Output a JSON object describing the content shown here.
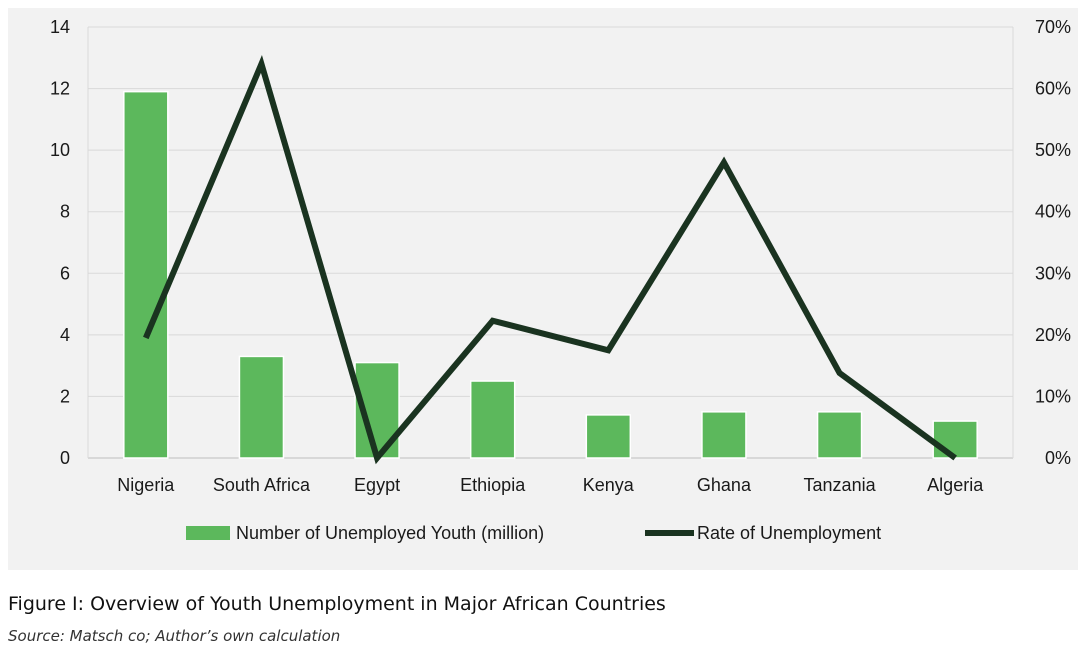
{
  "chart_data": {
    "type": "bar",
    "categories": [
      "Nigeria",
      "South Africa",
      "Egypt",
      "Ethiopia",
      "Kenya",
      "Ghana",
      "Tanzania",
      "Algeria"
    ],
    "series": [
      {
        "name": "Number of Unemployed Youth (million)",
        "type": "bar",
        "axis": "left",
        "color": "#5cb85c",
        "values": [
          11.9,
          3.3,
          3.1,
          2.5,
          1.4,
          1.5,
          1.5,
          1.2
        ]
      },
      {
        "name": "Rate of Unemployment",
        "type": "line",
        "axis": "right",
        "color": "#1a3320",
        "values": [
          19.5,
          64,
          0,
          22.3,
          17.5,
          48,
          13.8,
          0
        ]
      }
    ],
    "y_left": {
      "min": 0,
      "max": 14,
      "ticks": [
        "0",
        "2",
        "4",
        "6",
        "8",
        "10",
        "12",
        "14"
      ]
    },
    "y_right": {
      "min": 0,
      "max": 70,
      "ticks": [
        "0%",
        "10%",
        "20%",
        "30%",
        "40%",
        "50%",
        "60%",
        "70%"
      ]
    },
    "grid": true,
    "legend_position": "bottom"
  },
  "caption": {
    "title": "Figure I: Overview of Youth Unemployment in Major African Countries",
    "source": "Source: Matsch co; Author’s own calculation"
  }
}
